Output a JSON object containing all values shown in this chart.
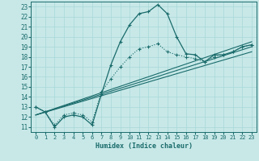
{
  "xlabel": "Humidex (Indice chaleur)",
  "xlim": [
    -0.5,
    23.5
  ],
  "ylim": [
    10.5,
    23.5
  ],
  "xticks": [
    0,
    1,
    2,
    3,
    4,
    5,
    6,
    7,
    8,
    9,
    10,
    11,
    12,
    13,
    14,
    15,
    16,
    17,
    18,
    19,
    20,
    21,
    22,
    23
  ],
  "yticks": [
    11,
    12,
    13,
    14,
    15,
    16,
    17,
    18,
    19,
    20,
    21,
    22,
    23
  ],
  "bg_color": "#c8e8e8",
  "line_color": "#1a6b6b",
  "grid_color": "#a8d8d8",
  "curve1_x": [
    0,
    1,
    2,
    3,
    4,
    5,
    6,
    7,
    8,
    9,
    10,
    11,
    12,
    13,
    14,
    15,
    16,
    17,
    18,
    19,
    20,
    21,
    22,
    23
  ],
  "curve1_y": [
    13.0,
    12.5,
    11.0,
    12.0,
    12.2,
    12.0,
    11.2,
    14.3,
    17.2,
    19.5,
    21.2,
    22.3,
    22.5,
    23.2,
    22.3,
    20.0,
    18.3,
    18.2,
    17.5,
    18.2,
    18.2,
    18.5,
    19.0,
    19.2
  ],
  "curve2_x": [
    0,
    1,
    2,
    3,
    4,
    5,
    6,
    7,
    8,
    9,
    10,
    11,
    12,
    13,
    14,
    15,
    16,
    17,
    18,
    19,
    20,
    21,
    22,
    23
  ],
  "curve2_y": [
    13.0,
    12.5,
    11.2,
    12.2,
    12.4,
    12.2,
    11.5,
    14.5,
    15.8,
    17.0,
    18.0,
    18.8,
    19.0,
    19.3,
    18.5,
    18.2,
    18.0,
    17.8,
    17.5,
    18.0,
    18.2,
    18.5,
    19.0,
    19.2
  ],
  "line1_x": [
    0,
    23
  ],
  "line1_y": [
    12.2,
    19.5
  ],
  "line2_x": [
    0,
    23
  ],
  "line2_y": [
    12.2,
    19.0
  ],
  "line3_x": [
    0,
    23
  ],
  "line3_y": [
    12.2,
    18.5
  ]
}
